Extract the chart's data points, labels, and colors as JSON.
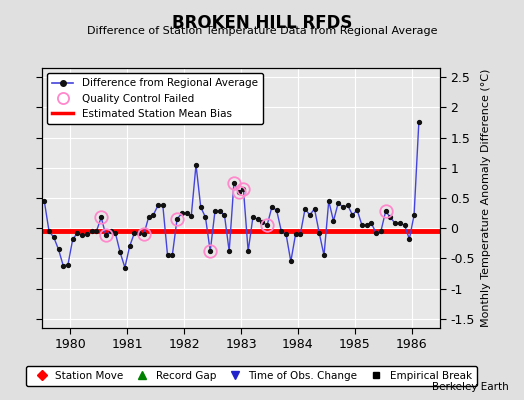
{
  "title": "BROKEN HILL RFDS",
  "subtitle": "Difference of Station Temperature Data from Regional Average",
  "ylabel": "Monthly Temperature Anomaly Difference (°C)",
  "xlabel_bottom": "Berkeley Earth",
  "xlim": [
    1979.5,
    1986.5
  ],
  "ylim": [
    -1.65,
    2.65
  ],
  "yticks": [
    -1.5,
    -1.0,
    -0.5,
    0.0,
    0.5,
    1.0,
    1.5,
    2.0,
    2.5
  ],
  "xticks": [
    1980,
    1981,
    1982,
    1983,
    1984,
    1985,
    1986
  ],
  "bias_level": -0.05,
  "bg_color": "#e0e0e0",
  "plot_bg_color": "#e8e8e8",
  "line_color": "#4444dd",
  "bias_color": "#ff0000",
  "marker_color": "#111111",
  "qc_color": "#ff88cc",
  "time_series": [
    0.45,
    -0.05,
    -0.15,
    -0.35,
    -0.62,
    -0.6,
    -0.18,
    -0.08,
    -0.12,
    -0.1,
    -0.05,
    -0.05,
    0.18,
    -0.12,
    -0.05,
    -0.08,
    -0.4,
    -0.65,
    -0.3,
    -0.08,
    -0.08,
    -0.1,
    0.18,
    0.22,
    0.38,
    0.38,
    -0.45,
    -0.45,
    0.15,
    0.25,
    0.25,
    0.2,
    1.05,
    0.35,
    0.18,
    -0.38,
    0.28,
    0.28,
    0.22,
    -0.38,
    0.75,
    0.6,
    0.65,
    -0.38,
    0.18,
    0.15,
    0.1,
    0.05,
    0.35,
    0.3,
    -0.05,
    -0.1,
    -0.55,
    -0.1,
    -0.1,
    0.32,
    0.22,
    0.32,
    -0.08,
    -0.45,
    0.45,
    0.12,
    0.42,
    0.35,
    0.38,
    0.22,
    0.3,
    0.05,
    0.05,
    0.08,
    -0.08,
    -0.05,
    0.28,
    0.18,
    0.08,
    0.08,
    0.05,
    -0.18,
    0.22,
    1.75
  ],
  "qc_failed_indices": [
    12,
    13,
    21,
    28,
    35,
    40,
    41,
    42,
    47,
    72
  ],
  "start_year": 1979,
  "start_month": 7
}
